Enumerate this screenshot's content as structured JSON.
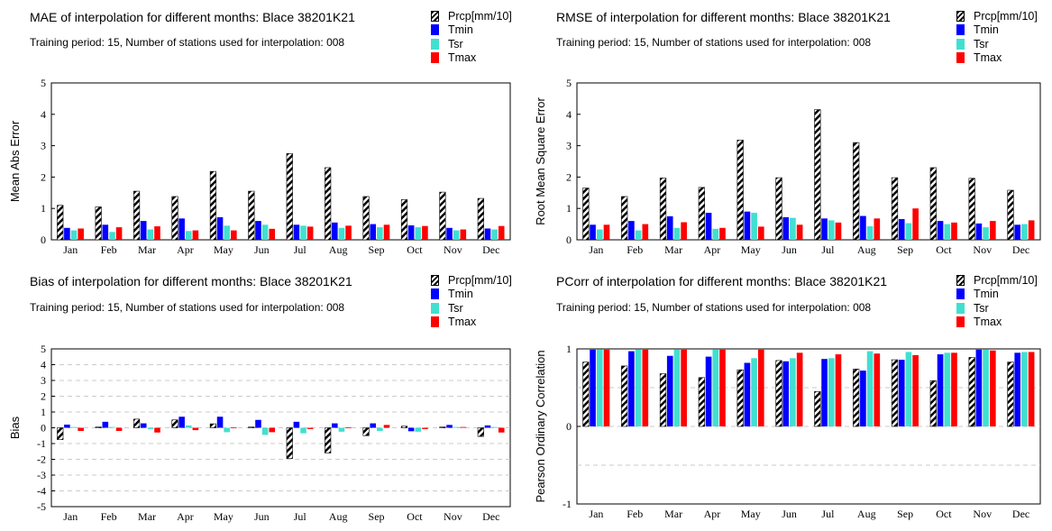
{
  "colors": {
    "prcp_a": "#000000",
    "prcp_b": "#ffffff",
    "tmin": "#0000ff",
    "tsr": "#40e0d0",
    "tmax": "#ff0000"
  },
  "legend": [
    "Prcp[mm/10]",
    "Tmin",
    "Tsr",
    "Tmax"
  ],
  "chart_data": [
    {
      "type": "bar",
      "title": "MAE of interpolation for different months: Blace  38201K21",
      "subtitle": "Training period: 15, Number of stations used for interpolation: 008",
      "ylabel": "Mean Abs Error",
      "ylim": [
        0,
        5
      ],
      "yticks": [
        "0",
        "1",
        "2",
        "3",
        "4",
        "5"
      ],
      "grid": false,
      "legend_position": "top-right",
      "categories": [
        "Jan",
        "Feb",
        "Mar",
        "Apr",
        "May",
        "Jun",
        "Jul",
        "Aug",
        "Sep",
        "Oct",
        "Nov",
        "Dec"
      ],
      "series": [
        {
          "name": "Prcp[mm/10]",
          "values": [
            1.1,
            1.05,
            1.55,
            1.38,
            2.18,
            1.55,
            2.75,
            2.3,
            1.38,
            1.28,
            1.52,
            1.32
          ]
        },
        {
          "name": "Tmin",
          "values": [
            0.38,
            0.48,
            0.6,
            0.68,
            0.72,
            0.6,
            0.48,
            0.55,
            0.5,
            0.46,
            0.38,
            0.36
          ]
        },
        {
          "name": "Tsr",
          "values": [
            0.3,
            0.25,
            0.33,
            0.28,
            0.45,
            0.48,
            0.45,
            0.38,
            0.4,
            0.4,
            0.3,
            0.33
          ]
        },
        {
          "name": "Tmax",
          "values": [
            0.36,
            0.4,
            0.43,
            0.3,
            0.3,
            0.35,
            0.42,
            0.45,
            0.48,
            0.44,
            0.33,
            0.44
          ]
        }
      ]
    },
    {
      "type": "bar",
      "title": "RMSE of interpolation for different months: Blace  38201K21",
      "subtitle": "Training period: 15, Number of stations used for interpolation: 008",
      "ylabel": "Root Mean Square Error",
      "ylim": [
        0,
        5
      ],
      "yticks": [
        "0",
        "1",
        "2",
        "3",
        "4",
        "5"
      ],
      "grid": false,
      "legend_position": "top-right",
      "categories": [
        "Jan",
        "Feb",
        "Mar",
        "Apr",
        "May",
        "Jun",
        "Jul",
        "Aug",
        "Sep",
        "Oct",
        "Nov",
        "Dec"
      ],
      "series": [
        {
          "name": "Prcp[mm/10]",
          "values": [
            1.65,
            1.38,
            1.97,
            1.67,
            3.18,
            1.98,
            4.15,
            3.1,
            1.98,
            2.3,
            1.96,
            1.58
          ]
        },
        {
          "name": "Tmin",
          "values": [
            0.48,
            0.6,
            0.75,
            0.86,
            0.9,
            0.72,
            0.68,
            0.76,
            0.66,
            0.6,
            0.52,
            0.48
          ]
        },
        {
          "name": "Tsr",
          "values": [
            0.33,
            0.3,
            0.38,
            0.35,
            0.86,
            0.7,
            0.62,
            0.43,
            0.53,
            0.5,
            0.4,
            0.5
          ]
        },
        {
          "name": "Tmax",
          "values": [
            0.48,
            0.5,
            0.56,
            0.38,
            0.42,
            0.48,
            0.55,
            0.68,
            1.0,
            0.55,
            0.6,
            0.62
          ]
        }
      ]
    },
    {
      "type": "bar",
      "title": "Bias of interpolation for different months: Blace  38201K21",
      "subtitle": "Training period: 15, Number of stations used for interpolation: 008",
      "ylabel": "Bias",
      "ylim": [
        -5,
        5
      ],
      "yticks": [
        "-5",
        "-4",
        "-3",
        "-2",
        "-1",
        "0",
        "1",
        "2",
        "3",
        "4",
        "5"
      ],
      "grid": true,
      "legend_position": "top-right",
      "categories": [
        "Jan",
        "Feb",
        "Mar",
        "Apr",
        "May",
        "Jun",
        "Jul",
        "Aug",
        "Sep",
        "Oct",
        "Nov",
        "Dec"
      ],
      "series": [
        {
          "name": "Prcp[mm/10]",
          "values": [
            -0.75,
            0.05,
            0.55,
            0.5,
            0.25,
            0.05,
            -1.95,
            -1.6,
            -0.5,
            0.1,
            0.05,
            -0.55
          ]
        },
        {
          "name": "Tmin",
          "values": [
            0.2,
            0.38,
            0.28,
            0.7,
            0.7,
            0.5,
            0.38,
            0.28,
            0.28,
            -0.22,
            0.18,
            0.15
          ]
        },
        {
          "name": "Tsr",
          "values": [
            0.05,
            0.05,
            -0.08,
            0.15,
            -0.28,
            -0.45,
            -0.35,
            -0.25,
            -0.2,
            -0.25,
            0.05,
            0.05
          ]
        },
        {
          "name": "Tmax",
          "values": [
            -0.2,
            -0.2,
            -0.3,
            -0.15,
            0.02,
            -0.28,
            -0.08,
            0.02,
            0.18,
            -0.08,
            0.05,
            -0.3
          ]
        }
      ]
    },
    {
      "type": "bar",
      "title": "PCorr of interpolation for different months: Blace  38201K21",
      "subtitle": "Training period: 15, Number of stations used for interpolation: 008",
      "ylabel": "Pearson Ordinary Correlation",
      "ylim": [
        -1,
        1
      ],
      "yticks": [
        "-1",
        "0",
        "1"
      ],
      "grid": true,
      "legend_position": "top-right",
      "categories": [
        "Jan",
        "Feb",
        "Mar",
        "Apr",
        "May",
        "Jun",
        "Jul",
        "Aug",
        "Sep",
        "Oct",
        "Nov",
        "Dec"
      ],
      "series": [
        {
          "name": "Prcp[mm/10]",
          "values": [
            0.83,
            0.78,
            0.68,
            0.63,
            0.73,
            0.85,
            0.45,
            0.74,
            0.86,
            0.59,
            0.89,
            0.83
          ]
        },
        {
          "name": "Tmin",
          "values": [
            0.99,
            0.97,
            0.91,
            0.9,
            0.82,
            0.84,
            0.87,
            0.72,
            0.86,
            0.93,
            0.99,
            0.95
          ]
        },
        {
          "name": "Tsr",
          "values": [
            0.99,
            0.99,
            0.99,
            0.99,
            0.88,
            0.88,
            0.88,
            0.97,
            0.96,
            0.95,
            0.99,
            0.96
          ]
        },
        {
          "name": "Tmax",
          "values": [
            0.99,
            0.99,
            0.99,
            0.99,
            0.99,
            0.95,
            0.93,
            0.94,
            0.92,
            0.95,
            0.98,
            0.96
          ]
        }
      ]
    }
  ]
}
